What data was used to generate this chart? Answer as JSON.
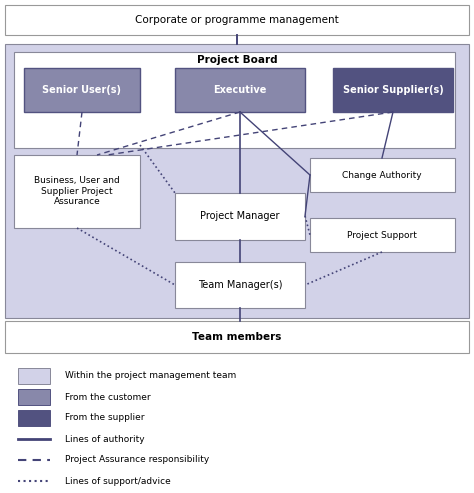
{
  "colors": {
    "light_lavender": "#d4d4e8",
    "medium_lavender": "#8888aa",
    "dark_purple": "#5555880",
    "line_color": "#4444770",
    "bg": "#ffffff",
    "outer_bg": "#d4d4e4",
    "inner_bg": "#ffffff",
    "senior_user_fill": "#8888aa",
    "executive_fill": "#8888aa",
    "senior_supplier_fill": "#5a5588",
    "border_gray": "#999999",
    "border_dark": "#666688",
    "text_dark": "#222222",
    "line_col": "#444477"
  },
  "legend": {
    "light_label": "Within the project management team",
    "medium_label": "From the customer",
    "dark_label": "From the supplier",
    "solid_label": "Lines of authority",
    "dashed_label": "Project Assurance responsibility",
    "dotted_label": "Lines of support/advice"
  }
}
